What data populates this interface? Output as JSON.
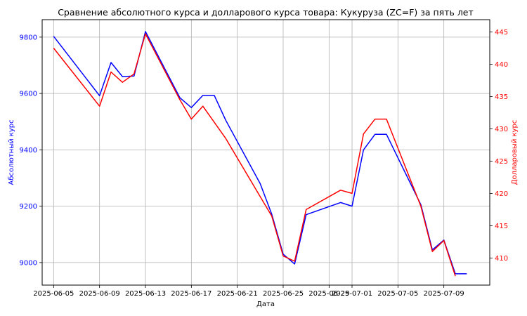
{
  "chart_data": {
    "type": "line",
    "title": "Сравнение абсолютного курса и долларового курса товара: Кукуруза (ZC=F) за пять лет",
    "xlabel": "Дата",
    "ylabel_left": "Абсолютный курс",
    "ylabel_right": "Долларовый курс",
    "grid": true,
    "x_ticks": [
      "2025-06-05",
      "2025-06-09",
      "2025-06-13",
      "2025-06-17",
      "2025-06-21",
      "2025-06-25",
      "2025-06-29",
      "2025-07-01",
      "2025-07-05",
      "2025-07-09"
    ],
    "y_left_ticks": [
      9000,
      9200,
      9400,
      9600,
      9800
    ],
    "y_right_ticks": [
      410,
      415,
      420,
      425,
      430,
      435,
      440,
      445
    ],
    "y_left_lim": [
      8920,
      9862
    ],
    "y_right_lim": [
      405.8,
      446.9
    ],
    "x_range": [
      "2025-06-04",
      "2025-07-13"
    ],
    "series": [
      {
        "axis": "left",
        "color": "#0000ff",
        "points": [
          [
            "2025-06-05",
            9803
          ],
          [
            "2025-06-09",
            9592
          ],
          [
            "2025-06-10",
            9710
          ],
          [
            "2025-06-11",
            9660
          ],
          [
            "2025-06-12",
            9662
          ],
          [
            "2025-06-13",
            9820
          ],
          [
            "2025-06-16",
            9585
          ],
          [
            "2025-06-17",
            9550
          ],
          [
            "2025-06-18",
            9593
          ],
          [
            "2025-06-19",
            9593
          ],
          [
            "2025-06-20",
            9505
          ],
          [
            "2025-06-23",
            9280
          ],
          [
            "2025-06-24",
            9172
          ],
          [
            "2025-06-25",
            9030
          ],
          [
            "2025-06-26",
            8995
          ],
          [
            "2025-06-27",
            9170
          ],
          [
            "2025-06-30",
            9213
          ],
          [
            "2025-07-01",
            9200
          ],
          [
            "2025-07-02",
            9400
          ],
          [
            "2025-07-03",
            9455
          ],
          [
            "2025-07-04",
            9455
          ],
          [
            "2025-07-07",
            9205
          ],
          [
            "2025-07-08",
            9045
          ],
          [
            "2025-07-09",
            9080
          ],
          [
            "2025-07-10",
            8960
          ],
          [
            "2025-07-11",
            8960
          ]
        ]
      },
      {
        "axis": "right",
        "color": "#ff0000",
        "points": [
          [
            "2025-06-05",
            442.5
          ],
          [
            "2025-06-09",
            433.5
          ],
          [
            "2025-06-10",
            438.8
          ],
          [
            "2025-06-11",
            437.2
          ],
          [
            "2025-06-12",
            438.5
          ],
          [
            "2025-06-13",
            444.7
          ],
          [
            "2025-06-16",
            434.5
          ],
          [
            "2025-06-17",
            431.5
          ],
          [
            "2025-06-18",
            433.5
          ],
          [
            "2025-06-20",
            428.5
          ],
          [
            "2025-06-23",
            419.5
          ],
          [
            "2025-06-24",
            416.5
          ],
          [
            "2025-06-25",
            410.3
          ],
          [
            "2025-06-26",
            409.5
          ],
          [
            "2025-06-27",
            417.5
          ],
          [
            "2025-06-30",
            420.5
          ],
          [
            "2025-07-01",
            420.0
          ],
          [
            "2025-07-02",
            429.2
          ],
          [
            "2025-07-03",
            431.5
          ],
          [
            "2025-07-04",
            431.5
          ],
          [
            "2025-07-07",
            418.0
          ],
          [
            "2025-07-08",
            411.0
          ],
          [
            "2025-07-09",
            412.7
          ],
          [
            "2025-07-10",
            407.2
          ]
        ]
      }
    ]
  }
}
